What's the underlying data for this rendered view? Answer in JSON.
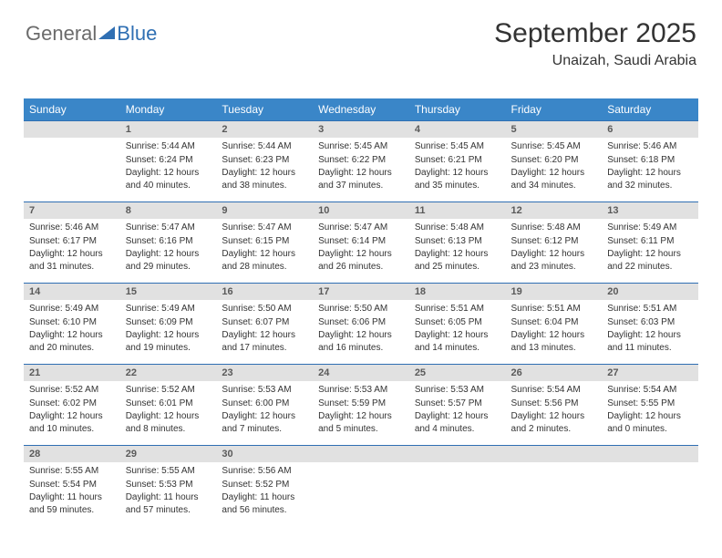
{
  "logo": {
    "word1": "General",
    "word2": "Blue"
  },
  "title": "September 2025",
  "location": "Unaizah, Saudi Arabia",
  "colors": {
    "header_bg": "#3a86c8",
    "header_fg": "#ffffff",
    "daterow_bg": "#e1e1e1",
    "daterow_border": "#2f6fb3",
    "text": "#333333",
    "logo_text": "#6b6b6b",
    "logo_blue": "#2f6fb3"
  },
  "days_of_week": [
    "Sunday",
    "Monday",
    "Tuesday",
    "Wednesday",
    "Thursday",
    "Friday",
    "Saturday"
  ],
  "weeks": [
    {
      "dates": [
        "",
        "1",
        "2",
        "3",
        "4",
        "5",
        "6"
      ],
      "cells": [
        null,
        {
          "sunrise": "Sunrise: 5:44 AM",
          "sunset": "Sunset: 6:24 PM",
          "daylight": "Daylight: 12 hours and 40 minutes."
        },
        {
          "sunrise": "Sunrise: 5:44 AM",
          "sunset": "Sunset: 6:23 PM",
          "daylight": "Daylight: 12 hours and 38 minutes."
        },
        {
          "sunrise": "Sunrise: 5:45 AM",
          "sunset": "Sunset: 6:22 PM",
          "daylight": "Daylight: 12 hours and 37 minutes."
        },
        {
          "sunrise": "Sunrise: 5:45 AM",
          "sunset": "Sunset: 6:21 PM",
          "daylight": "Daylight: 12 hours and 35 minutes."
        },
        {
          "sunrise": "Sunrise: 5:45 AM",
          "sunset": "Sunset: 6:20 PM",
          "daylight": "Daylight: 12 hours and 34 minutes."
        },
        {
          "sunrise": "Sunrise: 5:46 AM",
          "sunset": "Sunset: 6:18 PM",
          "daylight": "Daylight: 12 hours and 32 minutes."
        }
      ]
    },
    {
      "dates": [
        "7",
        "8",
        "9",
        "10",
        "11",
        "12",
        "13"
      ],
      "cells": [
        {
          "sunrise": "Sunrise: 5:46 AM",
          "sunset": "Sunset: 6:17 PM",
          "daylight": "Daylight: 12 hours and 31 minutes."
        },
        {
          "sunrise": "Sunrise: 5:47 AM",
          "sunset": "Sunset: 6:16 PM",
          "daylight": "Daylight: 12 hours and 29 minutes."
        },
        {
          "sunrise": "Sunrise: 5:47 AM",
          "sunset": "Sunset: 6:15 PM",
          "daylight": "Daylight: 12 hours and 28 minutes."
        },
        {
          "sunrise": "Sunrise: 5:47 AM",
          "sunset": "Sunset: 6:14 PM",
          "daylight": "Daylight: 12 hours and 26 minutes."
        },
        {
          "sunrise": "Sunrise: 5:48 AM",
          "sunset": "Sunset: 6:13 PM",
          "daylight": "Daylight: 12 hours and 25 minutes."
        },
        {
          "sunrise": "Sunrise: 5:48 AM",
          "sunset": "Sunset: 6:12 PM",
          "daylight": "Daylight: 12 hours and 23 minutes."
        },
        {
          "sunrise": "Sunrise: 5:49 AM",
          "sunset": "Sunset: 6:11 PM",
          "daylight": "Daylight: 12 hours and 22 minutes."
        }
      ]
    },
    {
      "dates": [
        "14",
        "15",
        "16",
        "17",
        "18",
        "19",
        "20"
      ],
      "cells": [
        {
          "sunrise": "Sunrise: 5:49 AM",
          "sunset": "Sunset: 6:10 PM",
          "daylight": "Daylight: 12 hours and 20 minutes."
        },
        {
          "sunrise": "Sunrise: 5:49 AM",
          "sunset": "Sunset: 6:09 PM",
          "daylight": "Daylight: 12 hours and 19 minutes."
        },
        {
          "sunrise": "Sunrise: 5:50 AM",
          "sunset": "Sunset: 6:07 PM",
          "daylight": "Daylight: 12 hours and 17 minutes."
        },
        {
          "sunrise": "Sunrise: 5:50 AM",
          "sunset": "Sunset: 6:06 PM",
          "daylight": "Daylight: 12 hours and 16 minutes."
        },
        {
          "sunrise": "Sunrise: 5:51 AM",
          "sunset": "Sunset: 6:05 PM",
          "daylight": "Daylight: 12 hours and 14 minutes."
        },
        {
          "sunrise": "Sunrise: 5:51 AM",
          "sunset": "Sunset: 6:04 PM",
          "daylight": "Daylight: 12 hours and 13 minutes."
        },
        {
          "sunrise": "Sunrise: 5:51 AM",
          "sunset": "Sunset: 6:03 PM",
          "daylight": "Daylight: 12 hours and 11 minutes."
        }
      ]
    },
    {
      "dates": [
        "21",
        "22",
        "23",
        "24",
        "25",
        "26",
        "27"
      ],
      "cells": [
        {
          "sunrise": "Sunrise: 5:52 AM",
          "sunset": "Sunset: 6:02 PM",
          "daylight": "Daylight: 12 hours and 10 minutes."
        },
        {
          "sunrise": "Sunrise: 5:52 AM",
          "sunset": "Sunset: 6:01 PM",
          "daylight": "Daylight: 12 hours and 8 minutes."
        },
        {
          "sunrise": "Sunrise: 5:53 AM",
          "sunset": "Sunset: 6:00 PM",
          "daylight": "Daylight: 12 hours and 7 minutes."
        },
        {
          "sunrise": "Sunrise: 5:53 AM",
          "sunset": "Sunset: 5:59 PM",
          "daylight": "Daylight: 12 hours and 5 minutes."
        },
        {
          "sunrise": "Sunrise: 5:53 AM",
          "sunset": "Sunset: 5:57 PM",
          "daylight": "Daylight: 12 hours and 4 minutes."
        },
        {
          "sunrise": "Sunrise: 5:54 AM",
          "sunset": "Sunset: 5:56 PM",
          "daylight": "Daylight: 12 hours and 2 minutes."
        },
        {
          "sunrise": "Sunrise: 5:54 AM",
          "sunset": "Sunset: 5:55 PM",
          "daylight": "Daylight: 12 hours and 0 minutes."
        }
      ]
    },
    {
      "dates": [
        "28",
        "29",
        "30",
        "",
        "",
        "",
        ""
      ],
      "cells": [
        {
          "sunrise": "Sunrise: 5:55 AM",
          "sunset": "Sunset: 5:54 PM",
          "daylight": "Daylight: 11 hours and 59 minutes."
        },
        {
          "sunrise": "Sunrise: 5:55 AM",
          "sunset": "Sunset: 5:53 PM",
          "daylight": "Daylight: 11 hours and 57 minutes."
        },
        {
          "sunrise": "Sunrise: 5:56 AM",
          "sunset": "Sunset: 5:52 PM",
          "daylight": "Daylight: 11 hours and 56 minutes."
        },
        null,
        null,
        null,
        null
      ]
    }
  ]
}
